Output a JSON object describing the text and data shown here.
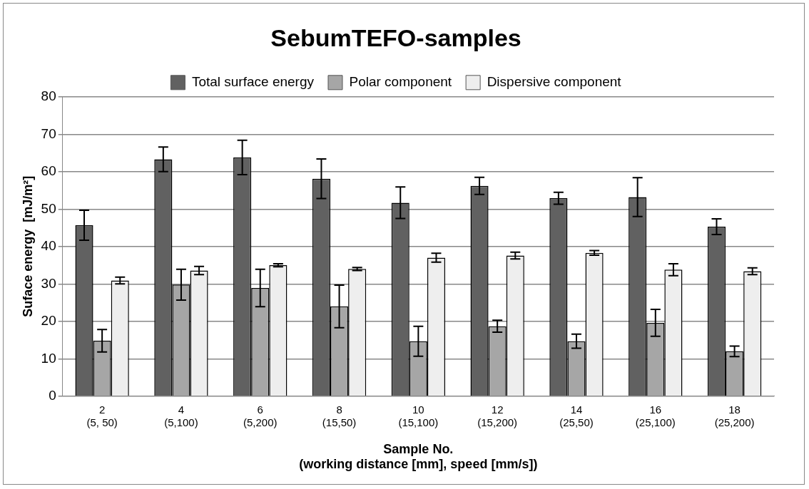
{
  "chart_data": {
    "type": "bar",
    "title": "SebumTEFO-samples",
    "xlabel": "Sample No.\n(working distance [mm], speed [mm/s])",
    "ylabel": "Suface energy  [mJ/m²]",
    "categories": [
      "2\n(5, 50)",
      "4\n(5,100)",
      "6\n(5,200)",
      "8\n(15,50)",
      "10\n(15,100)",
      "12\n(15,200)",
      "14\n(25,50)",
      "16\n(25,100)",
      "18\n(25,200)"
    ],
    "series": [
      {
        "name": "Total surface energy",
        "color": "#616161",
        "values": [
          45.7,
          63.3,
          63.8,
          58.1,
          51.7,
          56.2,
          52.9,
          53.2,
          45.3
        ],
        "errors": [
          4,
          3.3,
          4.6,
          5.3,
          4.2,
          2.3,
          1.6,
          5.2,
          2.1
        ]
      },
      {
        "name": "Polar component",
        "color": "#a6a6a6",
        "values": [
          14.8,
          29.8,
          28.9,
          24.0,
          14.7,
          18.7,
          14.7,
          19.6,
          12.0
        ],
        "errors": [
          3,
          4.1,
          5,
          5.7,
          4,
          1.6,
          1.9,
          3.6,
          1.4
        ]
      },
      {
        "name": "Dispersive component",
        "color": "#eeeeee",
        "values": [
          30.9,
          33.6,
          35.0,
          34.0,
          37.0,
          37.6,
          38.3,
          33.8,
          33.4
        ],
        "errors": [
          0.9,
          1.1,
          0.4,
          0.4,
          1.2,
          0.9,
          0.6,
          1.6,
          0.9
        ]
      }
    ],
    "ylim": [
      0,
      80
    ],
    "yticks": [
      0,
      10,
      20,
      30,
      40,
      50,
      60,
      70,
      80
    ],
    "grid": "y",
    "legend": "top"
  }
}
